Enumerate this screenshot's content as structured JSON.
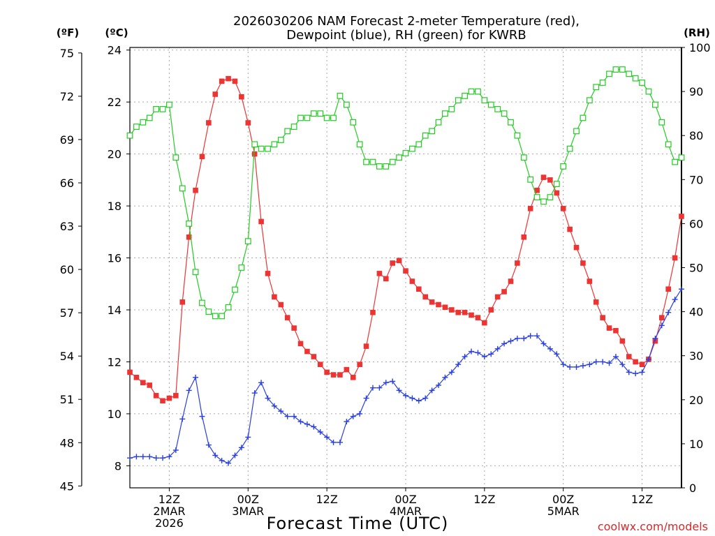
{
  "chart_data": {
    "type": "line",
    "title_lines": [
      "2026030206 NAM Forecast 2-meter Temperature (red),",
      "Dewpoint (blue), RH (green) for KWRB"
    ],
    "xlabel": "Forecast Time (UTC)",
    "credit": "coolwx.com/models",
    "unit_labels": {
      "fahrenheit": "(ºF)",
      "celsius": "(ºC)",
      "rh": "(RH)"
    },
    "x_unit": "hour",
    "x_range": [
      0,
      84
    ],
    "y_celsius_range": [
      7.15,
      24.1
    ],
    "y_rh_range": [
      0,
      100
    ],
    "y_fahrenheit_ticks": [
      "45",
      "48",
      "51",
      "54",
      "57",
      "60",
      "63",
      "66",
      "69",
      "72",
      "75"
    ],
    "y_celsius_ticks": [
      "8",
      "10",
      "12",
      "14",
      "16",
      "18",
      "20",
      "22",
      "24"
    ],
    "y_rh_ticks": [
      "0",
      "10",
      "20",
      "30",
      "40",
      "50",
      "60",
      "70",
      "80",
      "90",
      "100"
    ],
    "x_ticks": [
      {
        "hour": 6,
        "lines": [
          "12Z",
          "2MAR",
          "2026"
        ]
      },
      {
        "hour": 18,
        "lines": [
          "00Z",
          "3MAR"
        ]
      },
      {
        "hour": 30,
        "lines": [
          "12Z"
        ]
      },
      {
        "hour": 42,
        "lines": [
          "00Z",
          "4MAR"
        ]
      },
      {
        "hour": 54,
        "lines": [
          "12Z"
        ]
      },
      {
        "hour": 66,
        "lines": [
          "00Z",
          "5MAR"
        ]
      },
      {
        "hour": 78,
        "lines": [
          "12Z"
        ]
      }
    ],
    "series": [
      {
        "name": "Temperature",
        "color": "#ee3333",
        "marker": "filled-square",
        "axis": "celsius",
        "values": [
          11.6,
          11.4,
          11.2,
          11.1,
          10.7,
          10.5,
          10.6,
          10.7,
          14.3,
          16.8,
          18.6,
          19.9,
          21.2,
          22.3,
          22.8,
          22.9,
          22.8,
          22.2,
          21.2,
          20.0,
          17.4,
          15.4,
          14.5,
          14.2,
          13.7,
          13.3,
          12.7,
          12.4,
          12.2,
          11.9,
          11.6,
          11.5,
          11.5,
          11.7,
          11.4,
          11.9,
          12.6,
          13.9,
          15.4,
          15.2,
          15.8,
          15.9,
          15.5,
          15.1,
          14.8,
          14.5,
          14.3,
          14.2,
          14.1,
          14.0,
          13.9,
          13.9,
          13.8,
          13.7,
          13.5,
          14.0,
          14.5,
          14.7,
          15.1,
          15.8,
          16.8,
          17.9,
          18.6,
          19.1,
          19.0,
          18.5,
          17.9,
          17.1,
          16.4,
          15.8,
          15.1,
          14.3,
          13.7,
          13.3,
          13.2,
          12.8,
          12.2,
          12.0,
          11.9,
          12.1,
          12.8,
          13.7,
          14.8,
          16.0,
          17.6
        ]
      },
      {
        "name": "Dewpoint",
        "color": "#2a3fe0",
        "marker": "plus",
        "axis": "celsius",
        "values": [
          8.3,
          8.35,
          8.35,
          8.35,
          8.3,
          8.3,
          8.35,
          8.6,
          9.8,
          10.9,
          11.4,
          9.9,
          8.8,
          8.4,
          8.2,
          8.1,
          8.4,
          8.7,
          9.1,
          10.8,
          11.2,
          10.6,
          10.3,
          10.1,
          9.9,
          9.9,
          9.7,
          9.6,
          9.5,
          9.3,
          9.1,
          8.9,
          8.9,
          9.7,
          9.9,
          10.0,
          10.6,
          11.0,
          11.0,
          11.2,
          11.25,
          10.9,
          10.7,
          10.6,
          10.5,
          10.6,
          10.9,
          11.1,
          11.4,
          11.6,
          11.9,
          12.2,
          12.4,
          12.35,
          12.2,
          12.3,
          12.5,
          12.7,
          12.8,
          12.9,
          12.9,
          13.0,
          13.0,
          12.7,
          12.5,
          12.3,
          11.9,
          11.8,
          11.8,
          11.85,
          11.9,
          12.0,
          12.0,
          11.95,
          12.2,
          11.9,
          11.6,
          11.55,
          11.6,
          12.1,
          12.9,
          13.4,
          13.9,
          14.4,
          14.8
        ]
      },
      {
        "name": "RH",
        "color": "#22cc22",
        "marker": "open-square",
        "axis": "rh",
        "values": [
          80,
          82,
          83,
          84,
          86,
          86,
          87,
          75,
          68,
          60,
          49,
          42,
          40,
          39,
          39,
          41,
          45,
          50,
          56,
          78,
          77,
          77,
          78,
          79,
          81,
          82,
          84,
          84,
          85,
          85,
          84,
          84,
          89,
          87,
          83,
          78,
          74,
          74,
          73,
          73,
          74,
          75,
          76,
          77,
          78,
          80,
          81,
          83,
          85,
          86,
          88,
          89,
          90,
          90,
          88,
          87,
          86,
          85,
          83,
          80,
          75,
          70,
          66,
          65,
          66,
          69,
          73,
          77,
          81,
          84,
          88,
          91,
          92,
          94,
          95,
          95,
          94,
          93,
          92,
          90,
          87,
          83,
          78,
          74,
          75
        ]
      }
    ]
  }
}
